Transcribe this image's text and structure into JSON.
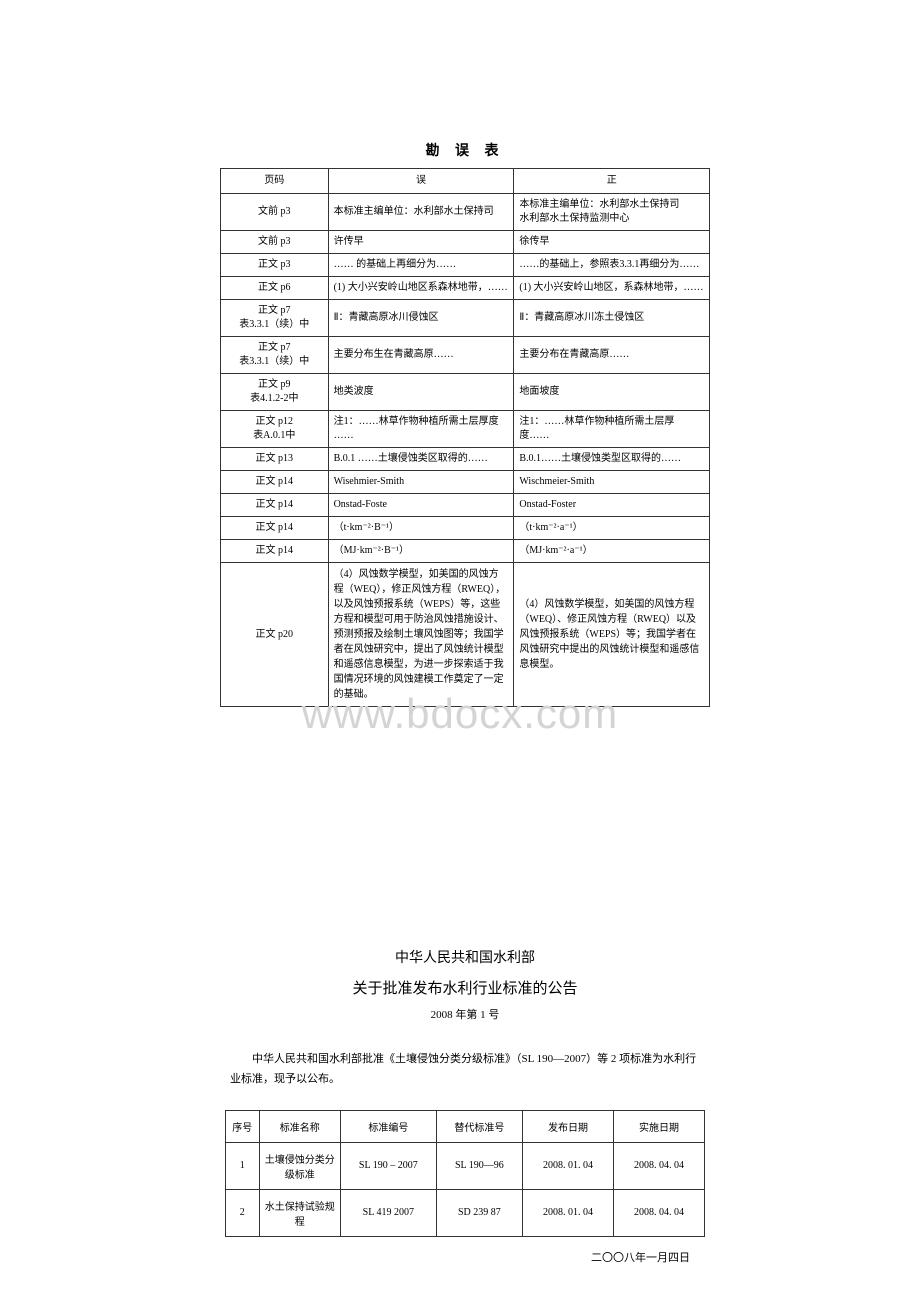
{
  "errata": {
    "title": "勘 误 表",
    "headers": {
      "page": "页码",
      "wrong": "误",
      "right": "正"
    },
    "rows": [
      {
        "page": "文前 p3",
        "wrong": "本标准主编单位：水利部水土保持司",
        "right": "本标准主编单位：水利部水土保持司\n水利部水土保持监测中心"
      },
      {
        "page": "文前 p3",
        "wrong": "许传早",
        "right": "徐传早"
      },
      {
        "page": "正文 p3",
        "wrong": "…… 的基础上再细分为……",
        "right": "……的基础上，参照表3.3.1再细分为……"
      },
      {
        "page": "正文 p6",
        "wrong": "(1) 大小兴安岭山地区系森林地带，……",
        "right": "(1) 大小兴安岭山地区，系森林地带，……"
      },
      {
        "page": "正文 p7\n表3.3.1（续）中",
        "wrong": "Ⅱ：青藏高原冰川侵蚀区",
        "right": "Ⅱ：青藏高原冰川冻土侵蚀区"
      },
      {
        "page": "正文 p7\n表3.3.1（续）中",
        "wrong": "主要分布生在青藏高原……",
        "right": "主要分布在青藏高原……"
      },
      {
        "page": "正文 p9\n表4.1.2-2中",
        "wrong": "地类波度",
        "right": "地面坡度"
      },
      {
        "page": "正文 p12\n表A.0.1中",
        "wrong": "注1：……林草作物种植所需土层厚度 ……",
        "right": "注1：……林草作物种植所需土层厚度……"
      },
      {
        "page": "正文 p13",
        "wrong": "B.0.1 ……土壤侵蚀类区取得的……",
        "right": "B.0.1……土壤侵蚀类型区取得的……"
      },
      {
        "page": "正文 p14",
        "wrong": "Wisehmier-Smith",
        "right": "Wischmeier-Smith"
      },
      {
        "page": "正文 p14",
        "wrong": "Onstad-Foste",
        "right": "Onstad-Foster"
      },
      {
        "page": "正文 p14",
        "wrong": "（t·km⁻²·B⁻¹）",
        "right": "（t·km⁻²·a⁻¹）"
      },
      {
        "page": "正文 p14",
        "wrong": "（MJ·km⁻²·B⁻¹）",
        "right": "（MJ·km⁻²·a⁻¹）"
      },
      {
        "page": "正文 p20",
        "wrong": "（4）风蚀数学模型，如美国的风蚀方程（WEQ），修正风蚀方程（RWEQ），以及风蚀预报系统（WEPS）等，这些方程和模型可用于防治风蚀措施设计、预测预报及绘制土壤风蚀图等；我国学者在风蚀研究中，提出了风蚀统计模型和遥感信息模型，为进一步探索适于我国情况环境的风蚀建模工作奠定了一定的基础。",
        "right": "（4）风蚀数学模型，如美国的风蚀方程（WEQ）、修正风蚀方程（RWEQ）以及风蚀预报系统（WEPS）等；我国学者在风蚀研究中提出的风蚀统计模型和遥感信息模型。"
      }
    ]
  },
  "watermark": "www.bdocx.com",
  "announcement": {
    "dept": "中华人民共和国水利部",
    "title": "关于批准发布水利行业标准的公告",
    "number": "2008 年第 1 号",
    "body": "中华人民共和国水利部批准《土壤侵蚀分类分级标准》（SL 190—2007）等 2 项标准为水利行业标准，现予以公布。",
    "tableHeaders": {
      "seq": "序号",
      "name": "标准名称",
      "num": "标准编号",
      "rep": "替代标准号",
      "date1": "发布日期",
      "date2": "实施日期"
    },
    "tableRows": [
      {
        "seq": "1",
        "name": "土壤侵蚀分类分级标准",
        "num": "SL 190 – 2007",
        "rep": "SL 190—96",
        "date1": "2008. 01. 04",
        "date2": "2008. 04. 04"
      },
      {
        "seq": "2",
        "name": "水土保持试验规程",
        "num": "SL 419   2007",
        "rep": "SD 239   87",
        "date1": "2008. 01. 04",
        "date2": "2008. 04. 04"
      }
    ],
    "dateLine": "二〇〇八年一月四日"
  }
}
